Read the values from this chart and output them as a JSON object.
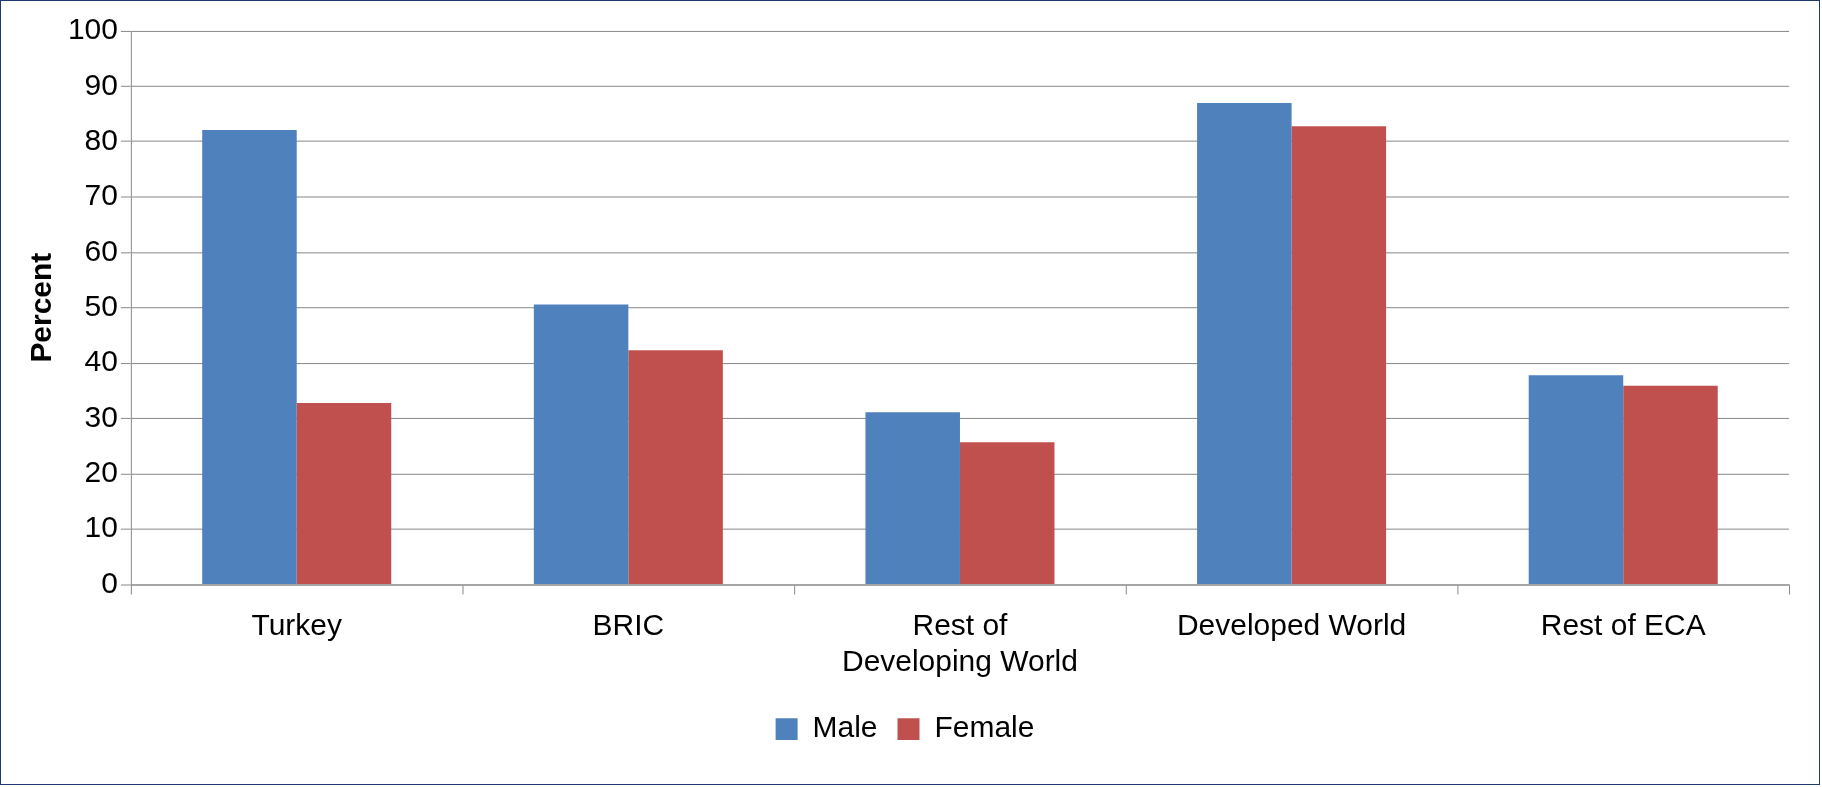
{
  "chart_data": {
    "type": "bar",
    "ylabel": "Percent",
    "categories": [
      "Turkey",
      "BRIC",
      "Rest of Developing World",
      "Developed World",
      "Rest of ECA"
    ],
    "series": [
      {
        "name": "Male",
        "color": "#4f81bd",
        "values": [
          82.1,
          50.6,
          31.1,
          87,
          37.8
        ]
      },
      {
        "name": "Female",
        "color": "#c0504d",
        "values": [
          32.8,
          42.3,
          25.7,
          82.8,
          35.9
        ]
      }
    ],
    "ylim": [
      0,
      100
    ],
    "yticks": [
      0,
      10,
      20,
      30,
      40,
      50,
      60,
      70,
      80,
      90,
      100
    ],
    "grid": "y",
    "legend": "bottom"
  }
}
